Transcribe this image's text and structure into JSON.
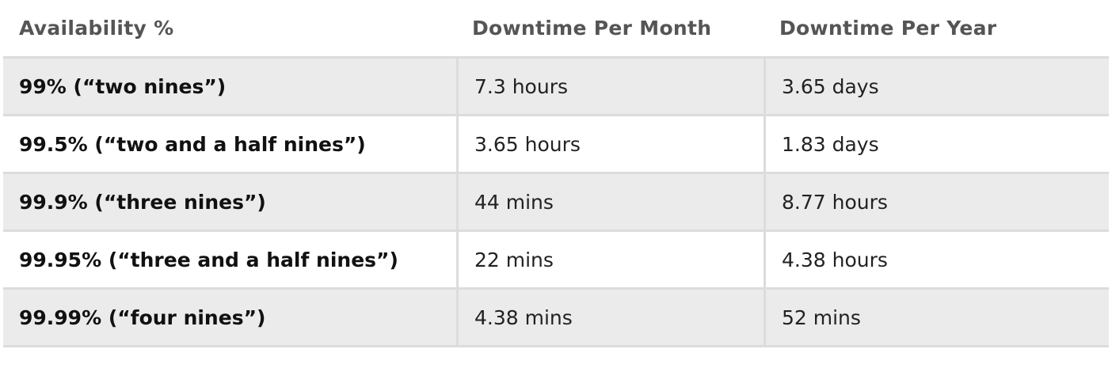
{
  "table": {
    "headers": [
      "Availability %",
      "Downtime Per Month",
      "Downtime Per Year"
    ],
    "rows": [
      {
        "availability": "99% (“two nines”)",
        "per_month": "7.3 hours",
        "per_year": "3.65 days"
      },
      {
        "availability": "99.5% (“two and a half nines”)",
        "per_month": "3.65 hours",
        "per_year": "1.83 days"
      },
      {
        "availability": "99.9% (“three nines”)",
        "per_month": "44 mins",
        "per_year": "8.77 hours"
      },
      {
        "availability": "99.95% (“three and a half nines”)",
        "per_month": "22 mins",
        "per_year": "4.38 hours"
      },
      {
        "availability": "99.99% (“four nines”)",
        "per_month": "4.38 mins",
        "per_year": "52 mins"
      }
    ]
  },
  "colors": {
    "row_shaded": "#ebebeb",
    "row_plain": "#ffffff",
    "grid_line": "#dcdcdc",
    "header_text": "#555555"
  }
}
